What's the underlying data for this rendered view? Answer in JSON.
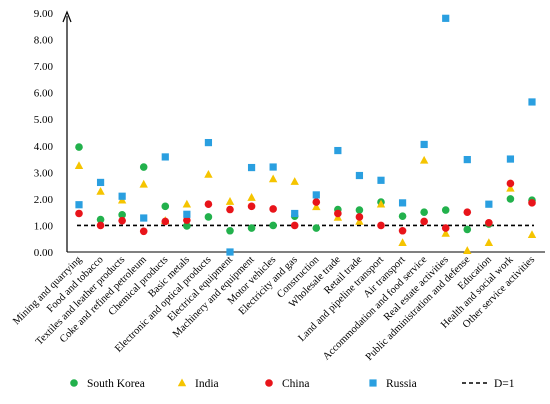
{
  "chart_data": {
    "type": "scatter",
    "title": "",
    "xlabel": "",
    "ylabel": "",
    "ylim": [
      0,
      9
    ],
    "yticks": [
      "0.00",
      "1.00",
      "2.00",
      "3.00",
      "4.00",
      "5.00",
      "6.00",
      "7.00",
      "8.00",
      "9.00"
    ],
    "categories": [
      "Mining and quarrying",
      "Food and tobacco",
      "Textiles and leather products",
      "Coke and refined petroleum",
      "Chemical products",
      "Basic metals",
      "Electronic and optical products",
      "Electrical equipment",
      "Machinery and equipment",
      "Motor vehicles",
      "Electricity and gas",
      "Construction",
      "Wholesale trade",
      "Retail trade",
      "Land and pipeline transport",
      "Air transport",
      "Accommodation and food service",
      "Real estate activities",
      "Public administration and defense",
      "Education",
      "Health and social work",
      "Other service activities"
    ],
    "series": [
      {
        "name": "South Korea",
        "marker": "circle",
        "color": "#22b14c",
        "values": [
          3.95,
          1.22,
          1.4,
          3.2,
          1.72,
          0.98,
          1.32,
          0.8,
          0.9,
          1.0,
          1.35,
          0.9,
          1.6,
          1.58,
          1.88,
          1.35,
          1.5,
          1.58,
          0.85,
          1.05,
          2.0,
          1.95
        ]
      },
      {
        "name": "India",
        "marker": "triangle",
        "color": "#f5c400",
        "values": [
          3.25,
          2.28,
          1.95,
          2.55,
          1.18,
          1.8,
          2.92,
          1.9,
          2.05,
          2.75,
          2.65,
          1.7,
          1.3,
          1.15,
          1.8,
          0.35,
          3.45,
          0.7,
          0.05,
          0.35,
          2.4,
          0.65
        ]
      },
      {
        "name": "China",
        "marker": "circle",
        "color": "#e8141a",
        "values": [
          1.45,
          1.0,
          1.18,
          0.78,
          1.15,
          1.2,
          1.8,
          1.6,
          1.72,
          1.62,
          1.0,
          1.88,
          1.45,
          1.32,
          1.0,
          0.8,
          1.15,
          0.9,
          1.5,
          1.1,
          2.58,
          1.85
        ]
      },
      {
        "name": "Russia",
        "marker": "square",
        "color": "#2a9fe0",
        "values": [
          1.78,
          2.62,
          2.1,
          1.28,
          3.58,
          1.42,
          4.12,
          0.0,
          3.18,
          3.2,
          1.45,
          2.15,
          3.82,
          2.88,
          2.7,
          1.85,
          4.05,
          8.8,
          3.48,
          1.8,
          3.5,
          5.65
        ]
      }
    ],
    "reference_line": {
      "name": "D=1",
      "value": 1.0,
      "style": "dashed",
      "color": "#000000"
    },
    "legend": {
      "position": "bottom"
    },
    "grid": false
  }
}
